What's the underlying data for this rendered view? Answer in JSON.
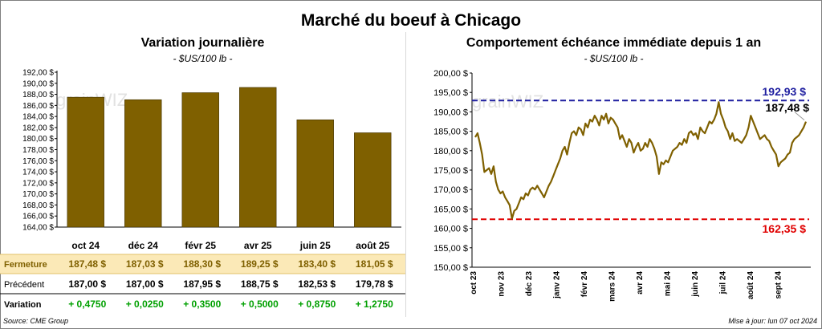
{
  "title": "Marché du boeuf à Chicago",
  "left": {
    "title": "Variation  journalière",
    "unit": "- $US/100 lb -",
    "watermark": "grainWIZ",
    "rows": [
      {
        "label": "Fermeture",
        "values": [
          "187,48  $",
          "187,03  $",
          "188,30  $",
          "189,25  $",
          "183,40  $",
          "181,05  $"
        ]
      },
      {
        "label": "Précédent",
        "values": [
          "187,00  $",
          "187,00  $",
          "187,95  $",
          "188,75  $",
          "182,53  $",
          "179,78  $"
        ]
      },
      {
        "label": "Variation",
        "values": [
          "+ 0,4750",
          "+ 0,0250",
          "+ 0,3500",
          "+ 0,5000",
          "+ 0,8750",
          "+ 1,2750"
        ]
      }
    ]
  },
  "right": {
    "title": "Comportement  échéance immédiate depuis 1 an",
    "unit": "- $US/100 lb -",
    "watermark": "grainWIZ",
    "high_label": "192,93 $",
    "low_label": "162,35 $",
    "last_label": "187,48 $"
  },
  "footer": {
    "source": "Source: CME Group",
    "updated": "Mise à jour: lun 07 oct 2024"
  },
  "colors": {
    "bar": "#7f6000",
    "bar_stroke": "#3f3000",
    "line": "#7f6000",
    "high": "#1f1fa0",
    "low": "#e00000",
    "highlight_row": "#fbe9b7",
    "positive": "#00a000"
  },
  "chart_data": [
    {
      "type": "bar",
      "categories": [
        "oct 24",
        "déc 24",
        "févr 25",
        "avr 25",
        "juin 25",
        "août 25"
      ],
      "values": [
        187.48,
        187.03,
        188.3,
        189.25,
        183.4,
        181.05
      ],
      "ylim": [
        164,
        192
      ],
      "ytick_step": 2,
      "ytick_labels": [
        "164,00 $",
        "166,00 $",
        "168,00 $",
        "170,00 $",
        "172,00 $",
        "174,00 $",
        "176,00 $",
        "178,00 $",
        "180,00 $",
        "182,00 $",
        "184,00 $",
        "186,00 $",
        "188,00 $",
        "190,00 $",
        "192,00 $"
      ],
      "grid": false
    },
    {
      "type": "line",
      "x_labels": [
        "oct 23",
        "nov 23",
        "déc 23",
        "janv 24",
        "févr 24",
        "mars 24",
        "avr 24",
        "mai 24",
        "juin 24",
        "juil 24",
        "août 24",
        "sept 24"
      ],
      "ylim": [
        150,
        200
      ],
      "ytick_step": 5,
      "ytick_labels": [
        "150,00 $",
        "155,00 $",
        "160,00 $",
        "165,00 $",
        "170,00 $",
        "175,00 $",
        "180,00 $",
        "185,00 $",
        "190,00 $",
        "195,00 $",
        "200,00 $"
      ],
      "values": [
        183.5,
        184.5,
        182,
        179,
        174.5,
        175,
        175.5,
        174,
        176,
        172,
        170,
        169,
        169.5,
        168,
        167,
        166,
        162.5,
        164.5,
        165,
        166.5,
        168,
        167.5,
        169,
        168.5,
        170,
        170.5,
        170,
        171,
        170,
        169,
        168,
        169.5,
        171,
        172,
        173.5,
        175,
        176.5,
        178,
        180,
        181,
        179,
        182,
        184.5,
        185,
        184,
        186,
        185.5,
        184,
        187,
        186,
        188,
        187.5,
        189,
        188,
        186.5,
        189,
        188,
        189.5,
        187,
        188.5,
        188,
        187,
        186,
        183,
        184,
        182.5,
        181,
        183,
        182,
        179.5,
        181,
        182,
        180,
        180.5,
        182,
        181,
        183,
        182,
        180.5,
        178.5,
        174,
        177,
        176.5,
        177.5,
        177,
        178.5,
        180,
        180.5,
        181,
        182,
        181.5,
        183,
        182,
        184.5,
        185,
        184,
        184.5,
        183,
        186,
        185,
        184.5,
        186,
        187.5,
        187,
        188,
        189.5,
        192.5,
        189.5,
        188,
        186,
        185,
        183,
        184.5,
        182.5,
        183,
        182.5,
        182,
        183,
        184,
        186,
        189,
        187.5,
        186,
        184.5,
        183,
        183.5,
        184,
        183,
        182.5,
        181,
        180,
        179,
        176,
        177,
        177.5,
        178,
        179,
        179.5,
        182,
        183,
        183.5,
        184,
        185,
        186,
        187.48
      ],
      "high": 192.93,
      "low": 162.35,
      "last": 187.48,
      "grid": false
    }
  ]
}
